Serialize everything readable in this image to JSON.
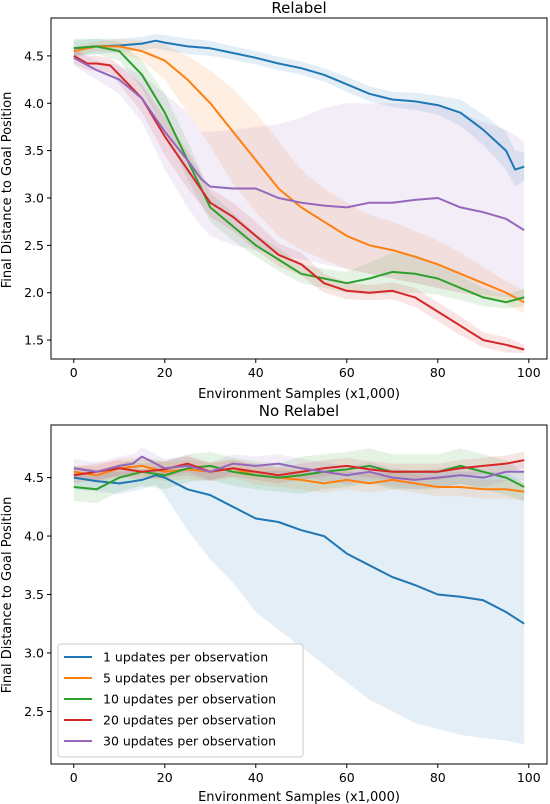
{
  "colors": {
    "1 updates per observation": "#1f77b4",
    "5 updates per observation": "#ff7f0e",
    "10 updates per observation": "#2ca02c",
    "20 updates per observation": "#d62728",
    "30 updates per observation": "#9467bd"
  },
  "legend": {
    "location": "lower-left of second panel",
    "entries": [
      "1 updates per observation",
      "5 updates per observation",
      "10 updates per observation",
      "20 updates per observation",
      "30 updates per observation"
    ]
  },
  "chart_data": [
    {
      "type": "line",
      "title": "Relabel",
      "xlabel": "Environment Samples (x1,000)",
      "ylabel": "Final Distance to Goal Position",
      "xlim": [
        -5,
        104
      ],
      "ylim": [
        1.3,
        4.9
      ],
      "xticks": [
        0,
        20,
        40,
        60,
        80,
        100
      ],
      "yticks": [
        1.5,
        2.0,
        2.5,
        3.0,
        3.5,
        4.0,
        4.5
      ],
      "grid": false,
      "series": [
        {
          "name": "1 updates per observation",
          "x": [
            0,
            5,
            10,
            15,
            18,
            20,
            25,
            30,
            35,
            40,
            45,
            50,
            55,
            60,
            65,
            70,
            75,
            80,
            85,
            90,
            95,
            97,
            99
          ],
          "y": [
            4.58,
            4.6,
            4.61,
            4.63,
            4.66,
            4.64,
            4.6,
            4.58,
            4.53,
            4.48,
            4.42,
            4.37,
            4.3,
            4.2,
            4.1,
            4.04,
            4.02,
            3.98,
            3.9,
            3.72,
            3.5,
            3.3,
            3.33
          ],
          "lower": [
            4.5,
            4.52,
            4.54,
            4.56,
            4.58,
            4.56,
            4.52,
            4.5,
            4.46,
            4.41,
            4.35,
            4.3,
            4.23,
            4.12,
            4.02,
            3.96,
            3.93,
            3.88,
            3.76,
            3.56,
            3.3,
            3.12,
            3.18
          ],
          "upper": [
            4.66,
            4.68,
            4.68,
            4.7,
            4.73,
            4.72,
            4.68,
            4.66,
            4.6,
            4.55,
            4.49,
            4.44,
            4.37,
            4.28,
            4.18,
            4.12,
            4.11,
            4.08,
            4.04,
            3.88,
            3.7,
            3.5,
            3.48
          ]
        },
        {
          "name": "5 updates per observation",
          "x": [
            0,
            5,
            10,
            15,
            20,
            25,
            30,
            35,
            40,
            45,
            50,
            55,
            60,
            65,
            70,
            75,
            80,
            85,
            90,
            95,
            99
          ],
          "y": [
            4.55,
            4.6,
            4.6,
            4.55,
            4.45,
            4.25,
            4.0,
            3.7,
            3.4,
            3.1,
            2.9,
            2.75,
            2.6,
            2.5,
            2.45,
            2.38,
            2.3,
            2.2,
            2.1,
            2.0,
            1.9
          ],
          "lower": [
            4.5,
            4.55,
            4.53,
            4.45,
            4.25,
            3.9,
            3.55,
            3.15,
            2.85,
            2.6,
            2.45,
            2.35,
            2.25,
            2.2,
            2.15,
            2.1,
            2.05,
            2.0,
            1.95,
            1.88,
            1.78
          ],
          "upper": [
            4.6,
            4.65,
            4.68,
            4.66,
            4.62,
            4.5,
            4.35,
            4.15,
            3.9,
            3.6,
            3.3,
            3.1,
            2.95,
            2.82,
            2.75,
            2.65,
            2.55,
            2.42,
            2.27,
            2.12,
            2.02
          ]
        },
        {
          "name": "10 updates per observation",
          "x": [
            0,
            5,
            10,
            15,
            20,
            25,
            30,
            35,
            40,
            45,
            50,
            55,
            60,
            65,
            70,
            75,
            80,
            85,
            90,
            95,
            99
          ],
          "y": [
            4.58,
            4.6,
            4.55,
            4.3,
            3.9,
            3.4,
            2.9,
            2.7,
            2.5,
            2.35,
            2.2,
            2.15,
            2.1,
            2.15,
            2.22,
            2.2,
            2.15,
            2.05,
            1.95,
            1.9,
            1.95
          ],
          "lower": [
            4.5,
            4.52,
            4.45,
            4.15,
            3.7,
            3.2,
            2.75,
            2.55,
            2.38,
            2.23,
            2.1,
            2.05,
            2.0,
            1.98,
            2.0,
            2.0,
            1.98,
            1.92,
            1.86,
            1.83,
            1.86
          ],
          "upper": [
            4.68,
            4.68,
            4.65,
            4.45,
            4.1,
            3.6,
            3.05,
            2.85,
            2.62,
            2.47,
            2.3,
            2.25,
            2.22,
            2.32,
            2.42,
            2.4,
            2.3,
            2.18,
            2.05,
            1.98,
            2.04
          ]
        },
        {
          "name": "20 updates per observation",
          "x": [
            0,
            3,
            5,
            8,
            10,
            15,
            20,
            25,
            30,
            35,
            40,
            45,
            50,
            55,
            60,
            65,
            70,
            75,
            80,
            85,
            90,
            95,
            99
          ],
          "y": [
            4.5,
            4.42,
            4.42,
            4.4,
            4.3,
            4.05,
            3.65,
            3.3,
            2.95,
            2.8,
            2.6,
            2.4,
            2.3,
            2.1,
            2.02,
            2.0,
            2.02,
            1.95,
            1.8,
            1.65,
            1.5,
            1.45,
            1.4
          ],
          "lower": [
            4.42,
            4.35,
            4.34,
            4.32,
            4.2,
            3.9,
            3.45,
            3.1,
            2.8,
            2.65,
            2.45,
            2.28,
            2.18,
            2.0,
            1.93,
            1.92,
            1.93,
            1.85,
            1.7,
            1.55,
            1.42,
            1.37,
            1.36
          ],
          "upper": [
            4.58,
            4.5,
            4.5,
            4.48,
            4.4,
            4.2,
            3.85,
            3.5,
            3.1,
            2.95,
            2.75,
            2.52,
            2.42,
            2.2,
            2.11,
            2.08,
            2.11,
            2.05,
            1.9,
            1.75,
            1.58,
            1.53,
            1.45
          ]
        },
        {
          "name": "30 updates per observation",
          "x": [
            0,
            5,
            10,
            15,
            20,
            25,
            28,
            30,
            35,
            40,
            45,
            50,
            55,
            60,
            65,
            70,
            75,
            80,
            85,
            90,
            95,
            99
          ],
          "y": [
            4.48,
            4.35,
            4.25,
            4.05,
            3.7,
            3.4,
            3.2,
            3.12,
            3.1,
            3.1,
            3.0,
            2.95,
            2.92,
            2.9,
            2.95,
            2.95,
            2.98,
            3.0,
            2.9,
            2.85,
            2.78,
            2.66
          ],
          "lower": [
            4.4,
            4.25,
            4.1,
            3.8,
            3.3,
            2.9,
            2.7,
            2.6,
            2.5,
            2.45,
            2.4,
            2.35,
            2.3,
            2.25,
            2.2,
            2.15,
            2.1,
            2.05,
            2.0,
            1.98,
            1.95,
            1.95
          ],
          "upper": [
            4.56,
            4.45,
            4.4,
            4.3,
            4.1,
            3.9,
            3.7,
            3.7,
            3.72,
            3.75,
            3.78,
            3.85,
            3.95,
            4.0,
            4.0,
            4.0,
            4.0,
            3.98,
            3.9,
            3.8,
            3.72,
            3.6
          ]
        }
      ]
    },
    {
      "type": "line",
      "title": "No Relabel",
      "xlabel": "Environment Samples (x1,000)",
      "ylabel": "Final Distance to Goal Position",
      "xlim": [
        -5,
        104
      ],
      "ylim": [
        2.05,
        4.95
      ],
      "xticks": [
        0,
        20,
        40,
        60,
        80,
        100
      ],
      "yticks": [
        2.5,
        3.0,
        3.5,
        4.0,
        4.5
      ],
      "grid": false,
      "series": [
        {
          "name": "1 updates per observation",
          "x": [
            0,
            5,
            10,
            15,
            18,
            20,
            25,
            30,
            35,
            40,
            45,
            50,
            55,
            60,
            65,
            70,
            75,
            80,
            85,
            90,
            95,
            99
          ],
          "y": [
            4.5,
            4.47,
            4.45,
            4.48,
            4.52,
            4.5,
            4.4,
            4.35,
            4.25,
            4.15,
            4.12,
            4.05,
            4.0,
            3.85,
            3.75,
            3.65,
            3.58,
            3.5,
            3.48,
            3.45,
            3.35,
            3.25
          ],
          "lower": [
            4.4,
            4.38,
            4.36,
            4.4,
            4.44,
            4.35,
            4.05,
            3.8,
            3.6,
            3.35,
            3.2,
            3.05,
            2.9,
            2.75,
            2.6,
            2.5,
            2.4,
            2.35,
            2.3,
            2.27,
            2.25,
            2.22
          ],
          "upper": [
            4.6,
            4.57,
            4.55,
            4.57,
            4.6,
            4.58,
            4.56,
            4.55,
            4.55,
            4.55,
            4.56,
            4.55,
            4.55,
            4.55,
            4.55,
            4.55,
            4.55,
            4.55,
            4.55,
            4.55,
            4.55,
            4.45
          ]
        },
        {
          "name": "5 updates per observation",
          "x": [
            0,
            5,
            10,
            15,
            20,
            25,
            30,
            35,
            40,
            45,
            50,
            55,
            60,
            65,
            70,
            75,
            80,
            85,
            90,
            95,
            99
          ],
          "y": [
            4.55,
            4.52,
            4.58,
            4.6,
            4.55,
            4.57,
            4.55,
            4.58,
            4.52,
            4.5,
            4.48,
            4.45,
            4.48,
            4.45,
            4.48,
            4.45,
            4.42,
            4.42,
            4.4,
            4.4,
            4.38
          ],
          "lower": [
            4.5,
            4.45,
            4.5,
            4.52,
            4.47,
            4.49,
            4.47,
            4.5,
            4.44,
            4.42,
            4.4,
            4.37,
            4.4,
            4.37,
            4.4,
            4.37,
            4.34,
            4.34,
            4.32,
            4.32,
            4.3
          ],
          "upper": [
            4.6,
            4.6,
            4.66,
            4.68,
            4.63,
            4.65,
            4.63,
            4.66,
            4.6,
            4.58,
            4.56,
            4.53,
            4.56,
            4.53,
            4.56,
            4.53,
            4.5,
            4.5,
            4.48,
            4.48,
            4.46
          ]
        },
        {
          "name": "10 updates per observation",
          "x": [
            0,
            5,
            10,
            15,
            20,
            25,
            30,
            35,
            40,
            45,
            50,
            55,
            60,
            65,
            70,
            75,
            80,
            85,
            90,
            95,
            99
          ],
          "y": [
            4.42,
            4.4,
            4.5,
            4.55,
            4.52,
            4.58,
            4.6,
            4.55,
            4.52,
            4.5,
            4.52,
            4.55,
            4.57,
            4.6,
            4.55,
            4.55,
            4.55,
            4.6,
            4.55,
            4.5,
            4.42
          ],
          "lower": [
            4.3,
            4.28,
            4.38,
            4.43,
            4.4,
            4.46,
            4.48,
            4.43,
            4.4,
            4.38,
            4.36,
            4.4,
            4.42,
            4.45,
            4.4,
            4.4,
            4.4,
            4.45,
            4.4,
            4.35,
            4.3
          ],
          "upper": [
            4.54,
            4.52,
            4.62,
            4.67,
            4.64,
            4.7,
            4.72,
            4.67,
            4.64,
            4.62,
            4.68,
            4.7,
            4.72,
            4.75,
            4.7,
            4.7,
            4.7,
            4.75,
            4.7,
            4.65,
            4.54
          ]
        },
        {
          "name": "20 updates per observation",
          "x": [
            0,
            5,
            10,
            15,
            20,
            25,
            30,
            35,
            40,
            45,
            50,
            55,
            60,
            65,
            70,
            75,
            80,
            85,
            90,
            95,
            99
          ],
          "y": [
            4.52,
            4.55,
            4.58,
            4.55,
            4.57,
            4.62,
            4.55,
            4.58,
            4.55,
            4.52,
            4.55,
            4.58,
            4.6,
            4.57,
            4.55,
            4.55,
            4.55,
            4.58,
            4.6,
            4.62,
            4.65
          ],
          "lower": [
            4.45,
            4.48,
            4.51,
            4.48,
            4.5,
            4.55,
            4.48,
            4.51,
            4.48,
            4.45,
            4.48,
            4.51,
            4.53,
            4.5,
            4.48,
            4.48,
            4.48,
            4.51,
            4.53,
            4.55,
            4.58
          ],
          "upper": [
            4.59,
            4.62,
            4.65,
            4.62,
            4.64,
            4.69,
            4.62,
            4.65,
            4.62,
            4.59,
            4.62,
            4.65,
            4.67,
            4.64,
            4.62,
            4.62,
            4.62,
            4.65,
            4.67,
            4.69,
            4.72
          ]
        },
        {
          "name": "30 updates per observation",
          "x": [
            0,
            5,
            10,
            13,
            15,
            20,
            25,
            30,
            35,
            40,
            45,
            50,
            55,
            60,
            65,
            70,
            75,
            80,
            85,
            90,
            95,
            99
          ],
          "y": [
            4.58,
            4.55,
            4.6,
            4.62,
            4.68,
            4.58,
            4.6,
            4.55,
            4.62,
            4.6,
            4.62,
            4.58,
            4.55,
            4.52,
            4.55,
            4.5,
            4.48,
            4.5,
            4.52,
            4.5,
            4.55,
            4.55
          ],
          "lower": [
            4.5,
            4.47,
            4.52,
            4.54,
            4.6,
            4.5,
            4.52,
            4.47,
            4.54,
            4.52,
            4.54,
            4.5,
            4.47,
            4.44,
            4.47,
            4.42,
            4.4,
            4.42,
            4.44,
            4.42,
            4.47,
            4.47
          ],
          "upper": [
            4.66,
            4.63,
            4.68,
            4.7,
            4.76,
            4.66,
            4.68,
            4.63,
            4.7,
            4.68,
            4.7,
            4.66,
            4.63,
            4.6,
            4.63,
            4.58,
            4.56,
            4.58,
            4.6,
            4.58,
            4.63,
            4.63
          ]
        }
      ]
    }
  ]
}
